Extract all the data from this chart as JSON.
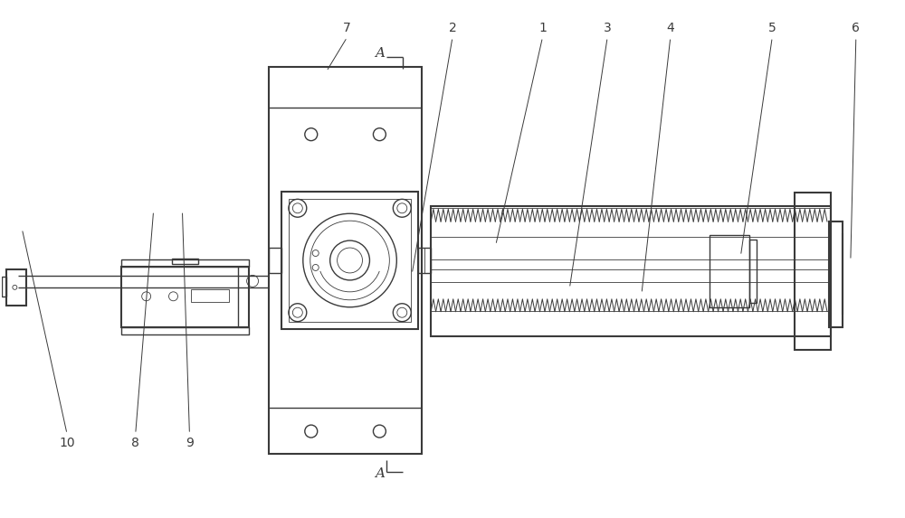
{
  "bg_color": "#ffffff",
  "line_color": "#3a3a3a",
  "lw": 1.0,
  "tlw": 0.6,
  "figsize": [
    10.0,
    5.73
  ],
  "labels_info": [
    [
      "1",
      600,
      543,
      548,
      302
    ],
    [
      "2",
      500,
      543,
      455,
      270
    ],
    [
      "3",
      672,
      543,
      630,
      254
    ],
    [
      "4",
      742,
      543,
      710,
      248
    ],
    [
      "5",
      855,
      543,
      820,
      290
    ],
    [
      "6",
      948,
      543,
      942,
      285
    ],
    [
      "7",
      383,
      543,
      360,
      495
    ],
    [
      "8",
      148,
      82,
      168,
      340
    ],
    [
      "9",
      208,
      82,
      200,
      340
    ],
    [
      "10",
      72,
      82,
      22,
      320
    ]
  ]
}
